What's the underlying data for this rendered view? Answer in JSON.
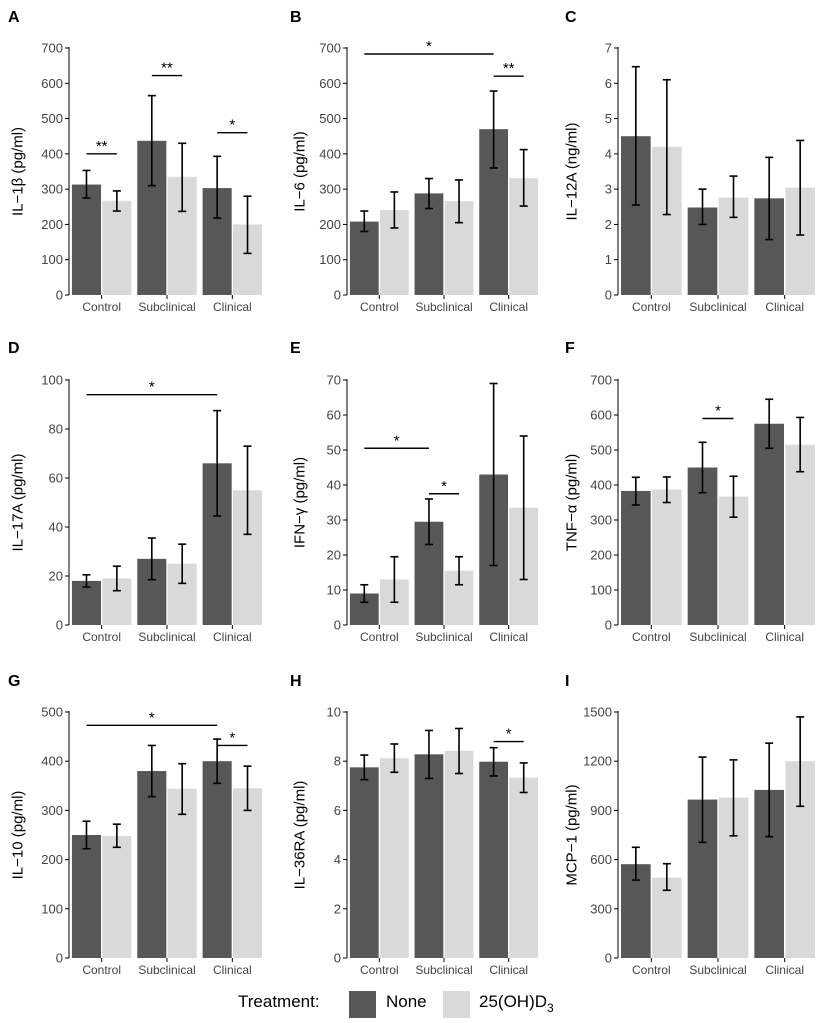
{
  "legend": {
    "title": "Treatment:",
    "items": [
      {
        "label": "None",
        "color": "#575757"
      },
      {
        "label": "25(OH)D",
        "subscript": "3",
        "color": "#d9d9d9"
      }
    ]
  },
  "colors": {
    "none": "#575757",
    "treated": "#d9d9d9",
    "axis": "#000000",
    "error": "#000000"
  },
  "chart_data": [
    {
      "type": "bar",
      "letter": "A",
      "ylabel": "IL−1β (pg/ml)",
      "ylim": [
        0,
        700
      ],
      "ticks": [
        0,
        100,
        200,
        300,
        400,
        500,
        600,
        700
      ],
      "categories": [
        "Control",
        "Subclinical",
        "Clinical"
      ],
      "series": [
        {
          "name": "None",
          "values": [
            313,
            437,
            303
          ],
          "err_low": [
            275,
            310,
            218
          ],
          "err_high": [
            353,
            565,
            393
          ]
        },
        {
          "name": "25(OH)D3",
          "values": [
            267,
            335,
            200
          ],
          "err_low": [
            238,
            237,
            118
          ],
          "err_high": [
            295,
            430,
            280
          ]
        }
      ],
      "significance": [
        {
          "from": [
            0,
            0
          ],
          "to": [
            0,
            1
          ],
          "y": 400,
          "label": "**"
        },
        {
          "from": [
            1,
            0
          ],
          "to": [
            1,
            1
          ],
          "y": 622,
          "label": "**"
        },
        {
          "from": [
            2,
            0
          ],
          "to": [
            2,
            1
          ],
          "y": 460,
          "label": "*"
        }
      ]
    },
    {
      "type": "bar",
      "letter": "B",
      "ylabel": "IL−6 (pg/ml)",
      "ylim": [
        0,
        700
      ],
      "ticks": [
        0,
        100,
        200,
        300,
        400,
        500,
        600,
        700
      ],
      "categories": [
        "Control",
        "Subclinical",
        "Clinical"
      ],
      "series": [
        {
          "name": "None",
          "values": [
            208,
            288,
            470
          ],
          "err_low": [
            180,
            245,
            360
          ],
          "err_high": [
            238,
            330,
            578
          ]
        },
        {
          "name": "25(OH)D3",
          "values": [
            241,
            266,
            331
          ],
          "err_low": [
            190,
            205,
            252
          ],
          "err_high": [
            292,
            326,
            412
          ]
        }
      ],
      "significance": [
        {
          "from": [
            0,
            0
          ],
          "to": [
            2,
            0
          ],
          "y": 683,
          "label": "*"
        },
        {
          "from": [
            2,
            0
          ],
          "to": [
            2,
            1
          ],
          "y": 620,
          "label": "**"
        }
      ]
    },
    {
      "type": "bar",
      "letter": "C",
      "ylabel": "IL−12A (ng/ml)",
      "ylim": [
        0,
        7
      ],
      "ticks": [
        0,
        1,
        2,
        3,
        4,
        5,
        6,
        7
      ],
      "categories": [
        "Control",
        "Subclinical",
        "Clinical"
      ],
      "series": [
        {
          "name": "None",
          "values": [
            4.5,
            2.48,
            2.74
          ],
          "err_low": [
            2.55,
            2.0,
            1.57
          ],
          "err_high": [
            6.47,
            3.0,
            3.9
          ]
        },
        {
          "name": "25(OH)D3",
          "values": [
            4.2,
            2.76,
            3.04
          ],
          "err_low": [
            2.28,
            2.2,
            1.7
          ],
          "err_high": [
            6.1,
            3.37,
            4.38
          ]
        }
      ],
      "significance": []
    },
    {
      "type": "bar",
      "letter": "D",
      "ylabel": "IL−17A (pg/ml)",
      "ylim": [
        0,
        100
      ],
      "ticks": [
        0,
        20,
        40,
        60,
        80,
        100
      ],
      "categories": [
        "Control",
        "Subclinical",
        "Clinical"
      ],
      "series": [
        {
          "name": "None",
          "values": [
            18,
            27,
            66
          ],
          "err_low": [
            15.5,
            18.5,
            44.5
          ],
          "err_high": [
            20.5,
            35.5,
            87.5
          ]
        },
        {
          "name": "25(OH)D3",
          "values": [
            19,
            25,
            55
          ],
          "err_low": [
            14,
            17,
            37
          ],
          "err_high": [
            24,
            33,
            73
          ]
        }
      ],
      "significance": [
        {
          "from": [
            0,
            0
          ],
          "to": [
            2,
            0
          ],
          "y": 94,
          "label": "*"
        }
      ]
    },
    {
      "type": "bar",
      "letter": "E",
      "ylabel": "IFN−γ (pg/ml)",
      "ylim": [
        0,
        70
      ],
      "ticks": [
        0,
        10,
        20,
        30,
        40,
        50,
        60,
        70
      ],
      "categories": [
        "Control",
        "Subclinical",
        "Clinical"
      ],
      "series": [
        {
          "name": "None",
          "values": [
            9,
            29.5,
            43
          ],
          "err_low": [
            6.5,
            23,
            17
          ],
          "err_high": [
            11.5,
            36,
            69
          ]
        },
        {
          "name": "25(OH)D3",
          "values": [
            13,
            15.5,
            33.5
          ],
          "err_low": [
            6.5,
            11.5,
            13
          ],
          "err_high": [
            19.5,
            19.5,
            54
          ]
        }
      ],
      "significance": [
        {
          "from": [
            0,
            0
          ],
          "to": [
            1,
            0
          ],
          "y": 50.5,
          "label": "*"
        },
        {
          "from": [
            1,
            0
          ],
          "to": [
            1,
            1
          ],
          "y": 37.5,
          "label": "*"
        }
      ]
    },
    {
      "type": "bar",
      "letter": "F",
      "ylabel": "TNF−α (pg/ml)",
      "ylim": [
        0,
        700
      ],
      "ticks": [
        0,
        100,
        200,
        300,
        400,
        500,
        600,
        700
      ],
      "categories": [
        "Control",
        "Subclinical",
        "Clinical"
      ],
      "series": [
        {
          "name": "None",
          "values": [
            383,
            450,
            575
          ],
          "err_low": [
            343,
            378,
            505
          ],
          "err_high": [
            422,
            522,
            645
          ]
        },
        {
          "name": "25(OH)D3",
          "values": [
            387,
            367,
            515
          ],
          "err_low": [
            350,
            308,
            438
          ],
          "err_high": [
            423,
            425,
            593
          ]
        }
      ],
      "significance": [
        {
          "from": [
            1,
            0
          ],
          "to": [
            1,
            1
          ],
          "y": 590,
          "label": "*"
        }
      ]
    },
    {
      "type": "bar",
      "letter": "G",
      "ylabel": "IL−10 (pg/ml)",
      "ylim": [
        0,
        500
      ],
      "ticks": [
        0,
        100,
        200,
        300,
        400,
        500
      ],
      "categories": [
        "Control",
        "Subclinical",
        "Clinical"
      ],
      "series": [
        {
          "name": "None",
          "values": [
            250,
            380,
            400
          ],
          "err_low": [
            222,
            328,
            355
          ],
          "err_high": [
            278,
            432,
            445
          ]
        },
        {
          "name": "25(OH)D3",
          "values": [
            248,
            344,
            345
          ],
          "err_low": [
            225,
            292,
            300
          ],
          "err_high": [
            272,
            395,
            390
          ]
        }
      ],
      "significance": [
        {
          "from": [
            0,
            0
          ],
          "to": [
            2,
            0
          ],
          "y": 473,
          "label": "*"
        },
        {
          "from": [
            2,
            0
          ],
          "to": [
            2,
            1
          ],
          "y": 432,
          "label": "*"
        }
      ]
    },
    {
      "type": "bar",
      "letter": "H",
      "ylabel": "IL−36RA (pg/ml)",
      "ylim": [
        0,
        10
      ],
      "ticks": [
        0,
        2,
        4,
        6,
        8,
        10
      ],
      "categories": [
        "Control",
        "Subclinical",
        "Clinical"
      ],
      "series": [
        {
          "name": "None",
          "values": [
            7.75,
            8.28,
            7.98
          ],
          "err_low": [
            7.25,
            7.3,
            7.4
          ],
          "err_high": [
            8.25,
            9.25,
            8.55
          ]
        },
        {
          "name": "25(OH)D3",
          "values": [
            8.12,
            8.42,
            7.33
          ],
          "err_low": [
            7.55,
            7.5,
            6.73
          ],
          "err_high": [
            8.7,
            9.33,
            7.93
          ]
        }
      ],
      "significance": [
        {
          "from": [
            2,
            0
          ],
          "to": [
            2,
            1
          ],
          "y": 8.8,
          "label": "*"
        }
      ]
    },
    {
      "type": "bar",
      "letter": "I",
      "ylabel": "MCP−1 (pg/ml)",
      "ylim": [
        0,
        1500
      ],
      "ticks": [
        0,
        300,
        600,
        900,
        1200,
        1500
      ],
      "categories": [
        "Control",
        "Subclinical",
        "Clinical"
      ],
      "series": [
        {
          "name": "None",
          "values": [
            572,
            966,
            1025
          ],
          "err_low": [
            475,
            705,
            740
          ],
          "err_high": [
            675,
            1225,
            1310
          ]
        },
        {
          "name": "25(OH)D3",
          "values": [
            490,
            978,
            1200
          ],
          "err_low": [
            413,
            745,
            925
          ],
          "err_high": [
            575,
            1208,
            1470
          ]
        }
      ],
      "significance": []
    }
  ]
}
